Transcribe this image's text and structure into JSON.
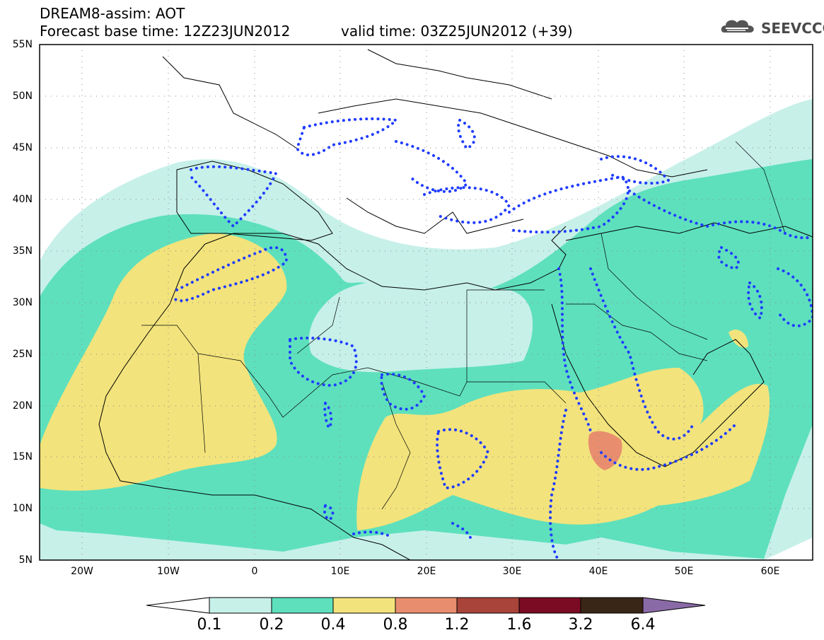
{
  "header": {
    "title": "DREAM8-assim: AOT",
    "base_time": "Forecast base time: 12Z23JUN2012",
    "valid_time": "valid time: 03Z25JUN2012 (+39)"
  },
  "logo": {
    "text": "SEEVCCC",
    "icon": "cloud-logo-icon"
  },
  "map": {
    "projection": "lat-lon",
    "lon_range": [
      -25,
      65
    ],
    "lat_range": [
      5,
      55
    ],
    "y_ticks": [
      "55N",
      "50N",
      "45N",
      "40N",
      "35N",
      "30N",
      "25N",
      "20N",
      "15N",
      "10N",
      "5N"
    ],
    "x_ticks": [
      "20W",
      "10W",
      "0",
      "10E",
      "20E",
      "30E",
      "40E",
      "50E",
      "60E"
    ],
    "field": "Aerosol optical thickness (dust)",
    "colors": {
      "c01": "#c7f0e9",
      "c02": "#5ee0bd",
      "c04": "#f2e37c",
      "c08": "#e88e6e",
      "c12": "#a8443a",
      "c16": "#7a0b22",
      "c32": "#3a2616",
      "c64": "#8a6aa6",
      "assim_contour": "#1f3cff"
    }
  },
  "colorbar": {
    "labels": [
      "0.1",
      "0.2",
      "0.4",
      "0.8",
      "1.2",
      "1.6",
      "3.2",
      "6.4"
    ],
    "colors": [
      "#c7f0e9",
      "#5ee0bd",
      "#f2e37c",
      "#e88e6e",
      "#a8443a",
      "#7a0b22",
      "#3a2616"
    ],
    "under_color": "#ffffff",
    "over_color": "#8a6aa6"
  }
}
